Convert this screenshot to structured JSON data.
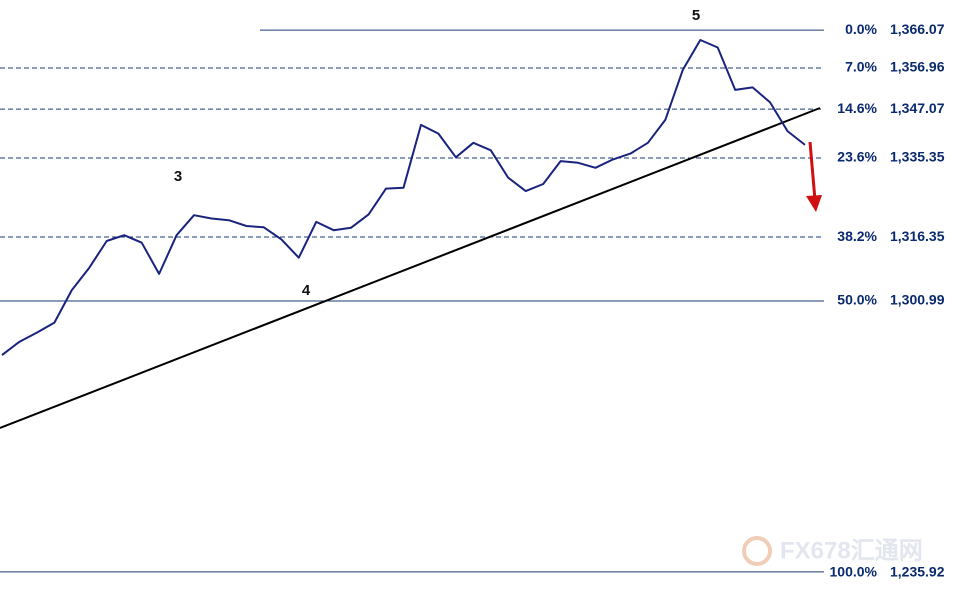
{
  "chart_data": {
    "type": "line",
    "categories": [
      null,
      null,
      null,
      null,
      null,
      null,
      null,
      null,
      null,
      null,
      null,
      null,
      null,
      null,
      null,
      null,
      null,
      null,
      null,
      null,
      null,
      null,
      null,
      null,
      null,
      null,
      null,
      null,
      null,
      null,
      null,
      null,
      null,
      null,
      null,
      null,
      null,
      null,
      null,
      null,
      null,
      null,
      null,
      null,
      null,
      null,
      null
    ],
    "series": [
      {
        "color": "#1a237e",
        "values": [
          1288.0,
          1291.2,
          1293.4,
          1295.8,
          1303.6,
          1309.0,
          1315.4,
          1316.8,
          1315.0,
          1307.5,
          1316.8,
          1321.6,
          1320.8,
          1320.4,
          1319.0,
          1318.7,
          1315.8,
          1311.4,
          1320.0,
          1318.0,
          1318.6,
          1321.8,
          1328.0,
          1328.2,
          1343.3,
          1341.2,
          1335.5,
          1339.0,
          1337.2,
          1330.6,
          1327.4,
          1329.1,
          1334.6,
          1334.2,
          1333.0,
          1335.0,
          1336.4,
          1339.0,
          1344.5,
          1356.5,
          1363.7,
          1361.9,
          1351.7,
          1352.3,
          1348.7,
          1341.8,
          1338.5
        ]
      }
    ],
    "ylim": [
      1231.8,
      1373.3
    ],
    "fib_levels": [
      {
        "ratio": {
          "value": 0,
          "label": "0.0%"
        },
        "price": {
          "value": 1366.07,
          "label": "1,366.07"
        },
        "style": "solid"
      },
      {
        "ratio": {
          "value": 7.0,
          "label": "7.0%"
        },
        "price": {
          "value": 1356.96,
          "label": "1,356.96"
        },
        "style": "dashed"
      },
      {
        "ratio": {
          "value": 14.6,
          "label": "14.6%"
        },
        "price": {
          "value": 1347.07,
          "label": "1,347.07"
        },
        "style": "dashed"
      },
      {
        "ratio": {
          "value": 23.6,
          "label": "23.6%"
        },
        "price": {
          "value": 1335.35,
          "label": "1,335.35"
        },
        "style": "dashed"
      },
      {
        "ratio": {
          "value": 38.2,
          "label": "38.2%"
        },
        "price": {
          "value": 1316.35,
          "label": "1,316.35"
        },
        "style": "dashed"
      },
      {
        "ratio": {
          "value": 50.0,
          "label": "50.0%"
        },
        "price": {
          "value": 1300.99,
          "label": "1,300.99"
        },
        "style": "solid"
      },
      {
        "ratio": {
          "value": 100.0,
          "label": "100.0%"
        },
        "price": {
          "value": 1235.92,
          "label": "1,235.92"
        },
        "style": "solid"
      }
    ],
    "annotations": [
      "3",
      "4",
      "5"
    ],
    "watermark": "FX678汇通网"
  }
}
